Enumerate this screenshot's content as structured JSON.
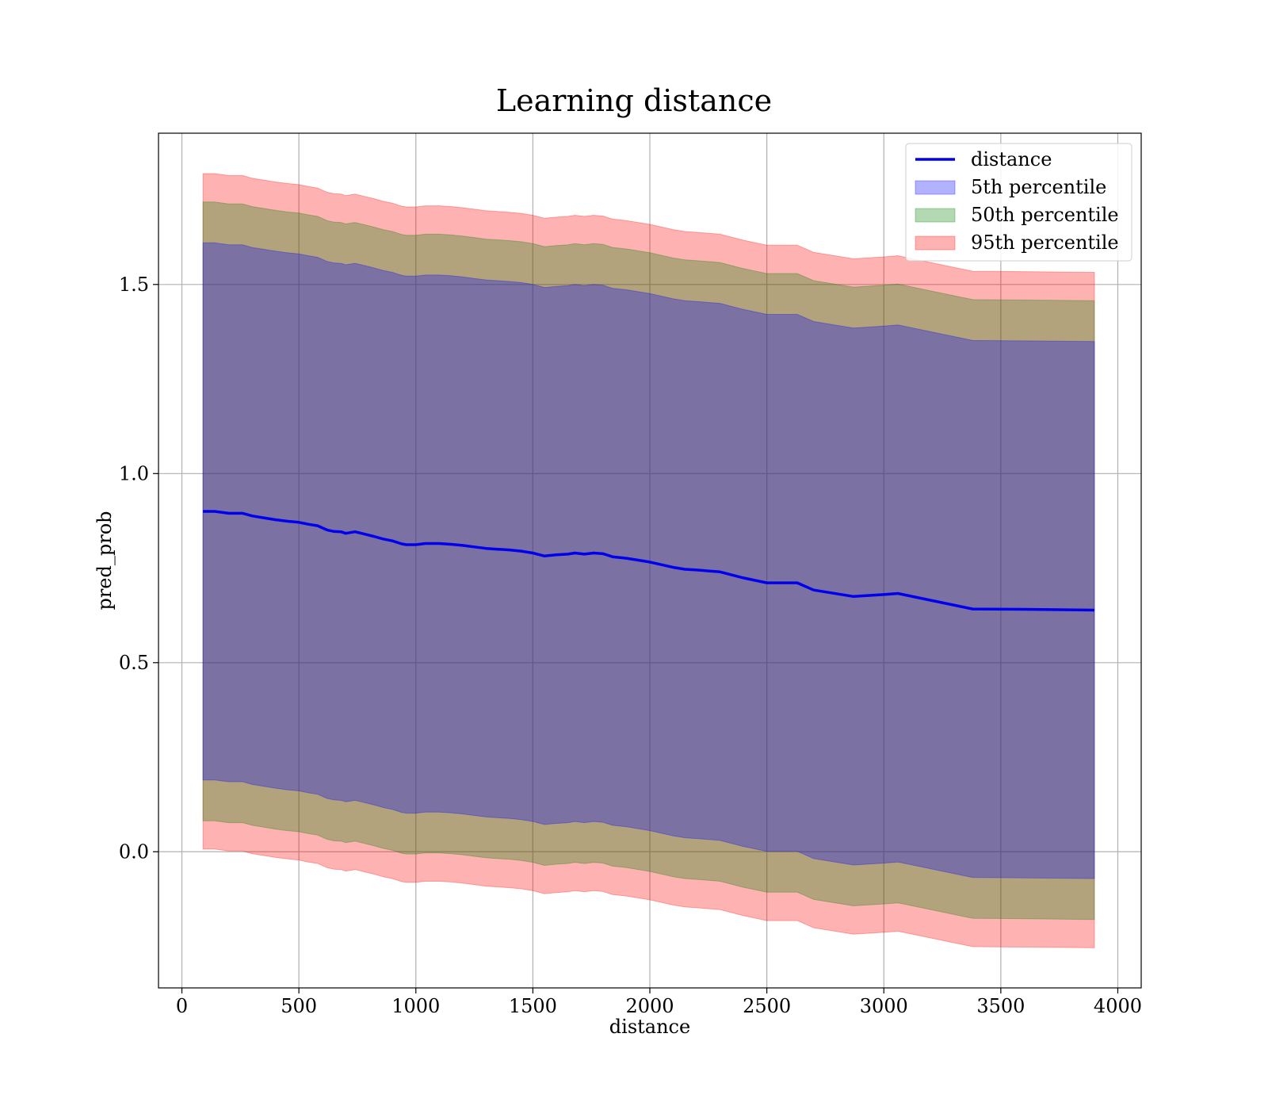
{
  "chart_data": {
    "type": "line",
    "title": "Learning distance",
    "xlabel": "distance",
    "ylabel": "pred_prob",
    "xlim": [
      -100,
      4100
    ],
    "ylim": [
      -0.36,
      1.9
    ],
    "xticks": [
      0,
      500,
      1000,
      1500,
      2000,
      2500,
      3000,
      3500,
      4000
    ],
    "xtick_labels": [
      "0",
      "500",
      "1000",
      "1500",
      "2000",
      "2500",
      "3000",
      "3500",
      "4000"
    ],
    "yticks": [
      0.0,
      0.5,
      1.0,
      1.5
    ],
    "ytick_labels": [
      "0.0",
      "0.5",
      "1.0",
      "1.5"
    ],
    "grid": true,
    "legend_position": "top-right",
    "x": [
      90,
      140,
      200,
      260,
      300,
      360,
      400,
      450,
      500,
      540,
      580,
      620,
      650,
      680,
      700,
      720,
      740,
      780,
      820,
      860,
      900,
      940,
      960,
      1000,
      1040,
      1100,
      1150,
      1200,
      1250,
      1300,
      1350,
      1400,
      1450,
      1500,
      1550,
      1600,
      1650,
      1680,
      1720,
      1760,
      1800,
      1840,
      1900,
      2000,
      2100,
      2150,
      2200,
      2300,
      2400,
      2500,
      2630,
      2700,
      2870,
      3000,
      3060,
      3200,
      3380,
      3600,
      3900
    ],
    "series": [
      {
        "name": "distance",
        "kind": "line",
        "color": "#0000ee",
        "values": [
          0.9,
          0.9,
          0.895,
          0.895,
          0.888,
          0.882,
          0.878,
          0.874,
          0.871,
          0.866,
          0.862,
          0.851,
          0.847,
          0.846,
          0.842,
          0.844,
          0.846,
          0.84,
          0.834,
          0.827,
          0.822,
          0.814,
          0.812,
          0.812,
          0.815,
          0.815,
          0.813,
          0.81,
          0.806,
          0.802,
          0.8,
          0.798,
          0.795,
          0.79,
          0.782,
          0.785,
          0.787,
          0.79,
          0.787,
          0.79,
          0.788,
          0.78,
          0.776,
          0.766,
          0.752,
          0.747,
          0.745,
          0.74,
          0.724,
          0.711,
          0.711,
          0.692,
          0.675,
          0.68,
          0.683,
          0.665,
          0.642,
          0.641,
          0.639
        ]
      },
      {
        "name": "5th percentile",
        "kind": "band",
        "color": "#0000ff",
        "half_width": 0.71
      },
      {
        "name": "50th percentile",
        "kind": "band",
        "color": "#008000",
        "half_width": 0.818
      },
      {
        "name": "95th percentile",
        "kind": "band",
        "color": "#ff0000",
        "half_width": 0.893
      }
    ]
  }
}
